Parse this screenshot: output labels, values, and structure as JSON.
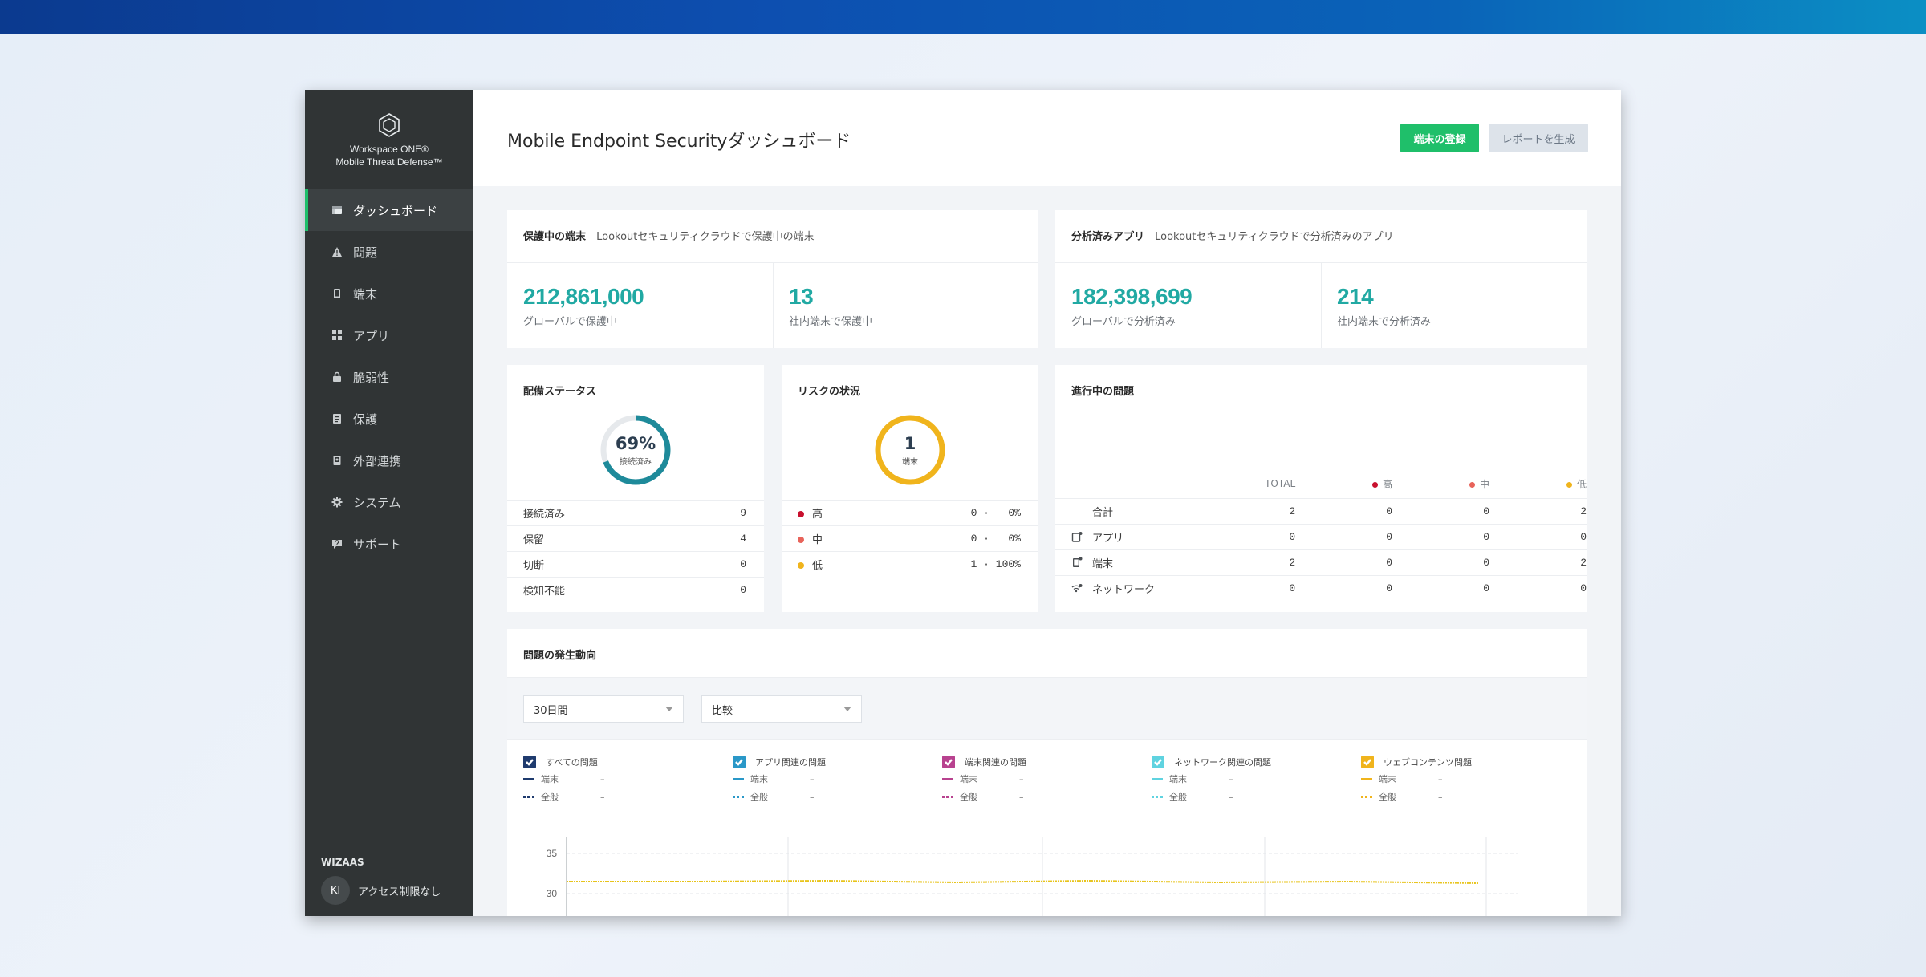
{
  "brand": {
    "line1": "Workspace ONE®",
    "line2": "Mobile Threat Defense™"
  },
  "sidebar": {
    "items": [
      {
        "label": "ダッシュボード"
      },
      {
        "label": "問題"
      },
      {
        "label": "端末"
      },
      {
        "label": "アプリ"
      },
      {
        "label": "脆弱性"
      },
      {
        "label": "保護"
      },
      {
        "label": "外部連携"
      },
      {
        "label": "システム"
      },
      {
        "label": "サポート"
      }
    ],
    "org": "WIZAAS",
    "avatar_initials": "KI",
    "user_label": "アクセス制限なし"
  },
  "header": {
    "title": "Mobile Endpoint Securityダッシュボード",
    "register_button": "端末の登録",
    "report_button": "レポートを生成"
  },
  "protected_devices": {
    "title": "保護中の端末",
    "subtitle": "Lookoutセキュリティクラウドで保護中の端末",
    "global_value": "212,861,000",
    "global_label": "グローバルで保護中",
    "internal_value": "13",
    "internal_label": "社内端末で保護中"
  },
  "analyzed_apps": {
    "title": "分析済みアプリ",
    "subtitle": "Lookoutセキュリティクラウドで分析済みのアプリ",
    "global_value": "182,398,699",
    "global_label": "グローバルで分析済み",
    "internal_value": "214",
    "internal_label": "社内端末で分析済み"
  },
  "deployment": {
    "title": "配備ステータス",
    "ring_value": "69%",
    "ring_label": "接続済み",
    "ring_fraction": 0.69,
    "rows": [
      {
        "label": "接続済み",
        "value": "9"
      },
      {
        "label": "保留",
        "value": "4"
      },
      {
        "label": "切断",
        "value": "0"
      },
      {
        "label": "検知不能",
        "value": "0"
      }
    ]
  },
  "risk": {
    "title": "リスクの状況",
    "ring_value": "1",
    "ring_label": "端末",
    "rows": [
      {
        "label": "高",
        "value": "0 ·   0%",
        "color": "#c8102e"
      },
      {
        "label": "中",
        "value": "0 ·   0%",
        "color": "#e8635a"
      },
      {
        "label": "低",
        "value": "1 · 100%",
        "color": "#f0b41c"
      }
    ]
  },
  "active_issues": {
    "title": "進行中の問題",
    "headers": {
      "total": "TOTAL",
      "high": "高",
      "medium": "中",
      "low": "低"
    },
    "colors": {
      "high": "#c8102e",
      "medium": "#e8635a",
      "low": "#f0b41c"
    },
    "rows": [
      {
        "label": "合計",
        "total": "2",
        "high": "0",
        "medium": "0",
        "low": "2",
        "icon": ""
      },
      {
        "label": "アプリ",
        "total": "0",
        "high": "0",
        "medium": "0",
        "low": "0",
        "icon": "app-icon"
      },
      {
        "label": "端末",
        "total": "2",
        "high": "0",
        "medium": "0",
        "low": "2",
        "icon": "device-icon"
      },
      {
        "label": "ネットワーク",
        "total": "0",
        "high": "0",
        "medium": "0",
        "low": "0",
        "icon": "network-icon"
      }
    ]
  },
  "trends": {
    "title": "問題の発生動向",
    "period_select": "30日間",
    "compare_select": "比較",
    "legend": [
      {
        "name": "すべての問題",
        "color": "#1f3b6e",
        "device_label": "端末",
        "global_label": "全般",
        "device_value": "–",
        "global_value": "–"
      },
      {
        "name": "アプリ関連の問題",
        "color": "#2a98c8",
        "device_label": "端末",
        "global_label": "全般",
        "device_value": "–",
        "global_value": "–"
      },
      {
        "name": "端末関連の問題",
        "color": "#b8428f",
        "device_label": "端末",
        "global_label": "全般",
        "device_value": "–",
        "global_value": "–"
      },
      {
        "name": "ネットワーク関連の問題",
        "color": "#5fd3e0",
        "device_label": "端末",
        "global_label": "全般",
        "device_value": "–",
        "global_value": "–"
      },
      {
        "name": "ウェブコンテンツ問題",
        "color": "#f0b41c",
        "device_label": "端末",
        "global_label": "全般",
        "device_value": "–",
        "global_value": "–"
      }
    ],
    "chart_data": {
      "type": "line",
      "y_ticks": [
        "35",
        "30"
      ],
      "ylim": [
        25,
        37
      ],
      "series": [
        {
          "color": "#e8c41c",
          "values": [
            31.5,
            31.5,
            31.6,
            31.4,
            31.6,
            31.4,
            31.5,
            31.3
          ]
        }
      ]
    }
  }
}
